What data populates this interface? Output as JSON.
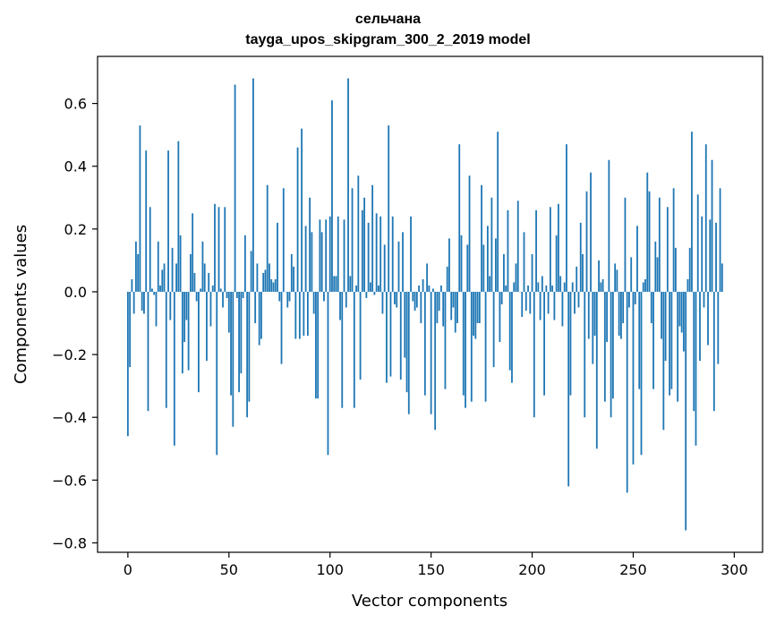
{
  "chart_data": {
    "type": "bar",
    "title": "сельчана",
    "subtitle": "tayga_upos_skipgram_300_2_2019 model",
    "xlabel": "Vector components",
    "ylabel": "Components values",
    "xlim": [
      -15,
      314
    ],
    "ylim": [
      -0.83,
      0.75
    ],
    "xticks": [
      0,
      50,
      100,
      150,
      200,
      250,
      300
    ],
    "yticks": [
      0.6,
      0.4,
      0.2,
      0.0,
      -0.2,
      -0.4,
      -0.6,
      -0.8
    ],
    "ytick_labels": [
      "0.6",
      "0.4",
      "0.2",
      "0.0",
      "−0.2",
      "−0.4",
      "−0.6",
      "−0.8"
    ],
    "grid": false,
    "bar_color": "#1f77b4",
    "values": [
      -0.46,
      -0.24,
      0.04,
      -0.07,
      0.16,
      0.12,
      0.53,
      -0.06,
      -0.07,
      0.45,
      -0.38,
      0.27,
      0.01,
      -0.01,
      -0.11,
      0.16,
      0.02,
      0.07,
      0.09,
      -0.37,
      0.45,
      -0.09,
      0.14,
      -0.49,
      0.09,
      0.48,
      0.18,
      -0.26,
      -0.16,
      -0.09,
      -0.25,
      0.12,
      0.25,
      0.06,
      -0.03,
      -0.32,
      0.01,
      0.16,
      0.09,
      -0.22,
      0.06,
      -0.11,
      0.02,
      0.28,
      -0.52,
      0.27,
      0.01,
      -0.05,
      0.27,
      -0.02,
      -0.13,
      -0.33,
      -0.43,
      0.66,
      -0.02,
      -0.32,
      -0.26,
      -0.02,
      0.18,
      -0.4,
      -0.35,
      0.13,
      0.68,
      -0.1,
      0.09,
      -0.17,
      -0.15,
      0.06,
      0.07,
      0.34,
      0.09,
      0.04,
      0.03,
      0.04,
      0.22,
      -0.03,
      -0.23,
      0.33,
      0.0,
      -0.05,
      -0.03,
      0.12,
      0.08,
      -0.15,
      0.46,
      -0.15,
      0.52,
      -0.14,
      0.21,
      -0.14,
      0.3,
      0.19,
      -0.07,
      -0.34,
      -0.34,
      0.23,
      0.19,
      -0.03,
      0.23,
      -0.52,
      0.24,
      0.61,
      0.05,
      0.05,
      0.24,
      -0.09,
      -0.37,
      0.23,
      -0.05,
      0.68,
      0.05,
      0.33,
      -0.37,
      0.02,
      0.37,
      -0.28,
      0.26,
      0.3,
      -0.02,
      0.22,
      0.03,
      0.34,
      -0.01,
      0.25,
      0.02,
      0.24,
      -0.07,
      0.15,
      -0.29,
      0.53,
      -0.27,
      0.24,
      -0.04,
      -0.05,
      0.16,
      -0.28,
      0.19,
      -0.21,
      -0.32,
      -0.39,
      0.24,
      -0.03,
      -0.06,
      -0.05,
      0.02,
      -0.1,
      0.04,
      -0.33,
      0.09,
      0.02,
      -0.39,
      0.01,
      -0.44,
      -0.1,
      -0.06,
      0.02,
      -0.11,
      -0.31,
      0.08,
      0.17,
      -0.09,
      -0.05,
      -0.13,
      -0.1,
      0.47,
      0.18,
      -0.33,
      -0.37,
      0.15,
      0.37,
      -0.35,
      -0.14,
      -0.15,
      -0.1,
      -0.1,
      0.34,
      0.15,
      -0.35,
      0.21,
      0.05,
      0.3,
      -0.24,
      0.17,
      0.51,
      -0.16,
      -0.04,
      0.12,
      0.02,
      0.26,
      -0.25,
      -0.29,
      0.03,
      0.09,
      0.29,
      0.0,
      -0.08,
      0.19,
      -0.06,
      0.02,
      -0.07,
      0.12,
      -0.4,
      0.26,
      0.03,
      -0.09,
      0.05,
      -0.33,
      0.02,
      -0.07,
      0.27,
      0.02,
      -0.09,
      0.18,
      0.28,
      0.05,
      -0.11,
      0.03,
      0.47,
      -0.62,
      -0.33,
      0.03,
      -0.07,
      0.08,
      -0.05,
      0.22,
      0.12,
      -0.4,
      0.32,
      -0.15,
      0.38,
      -0.23,
      -0.14,
      -0.5,
      0.1,
      0.03,
      0.04,
      -0.35,
      -0.16,
      0.42,
      -0.4,
      -0.34,
      0.09,
      0.07,
      -0.14,
      -0.15,
      -0.1,
      0.3,
      -0.64,
      -0.05,
      0.11,
      -0.55,
      -0.04,
      0.21,
      -0.31,
      -0.52,
      0.03,
      0.04,
      0.38,
      0.32,
      -0.1,
      -0.31,
      0.16,
      0.11,
      0.3,
      -0.15,
      -0.44,
      -0.22,
      0.27,
      -0.33,
      -0.31,
      0.33,
      0.14,
      -0.35,
      -0.11,
      -0.13,
      -0.19,
      -0.76,
      0.04,
      0.14,
      0.51,
      -0.38,
      -0.49,
      0.31,
      -0.22,
      0.24,
      -0.05,
      0.47,
      -0.17,
      0.23,
      0.42,
      -0.38,
      0.22,
      -0.23,
      0.33,
      0.09
    ]
  }
}
